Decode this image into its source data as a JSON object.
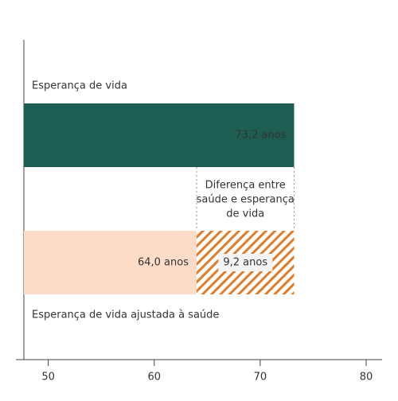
{
  "chart_data": {
    "type": "bar",
    "orientation": "horizontal",
    "categories": [
      "Esperança de vida",
      "Esperança de vida ajustada à saúde"
    ],
    "values": [
      73.2,
      64.0
    ],
    "value_labels": [
      "73,2 anos",
      "64,0 anos"
    ],
    "colors": [
      "#1e5e52",
      "#fddcc8"
    ],
    "difference": {
      "value": 9.2,
      "label": "9,2 anos",
      "color": "#e07b2a",
      "annotation": [
        "Diferença entre",
        "saúde e esperança",
        "de vida"
      ]
    },
    "xlim": [
      47.7,
      81.5
    ],
    "xticks": [
      50,
      60,
      70,
      80
    ]
  }
}
